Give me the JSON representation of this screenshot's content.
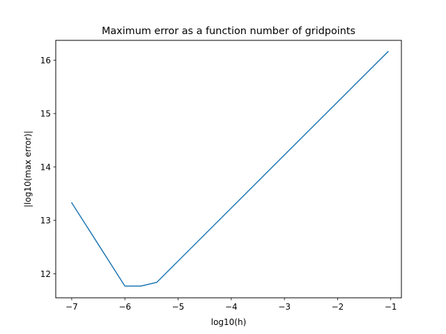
{
  "chart_data": {
    "type": "line",
    "title": "Maximum error as a function number of gridpoints",
    "xlabel": "log10(h)",
    "ylabel": "|log10(max error)|",
    "xlim": [
      -7.3,
      -0.8
    ],
    "ylim": [
      11.55,
      16.37
    ],
    "x_ticks": [
      -7,
      -6,
      -5,
      -4,
      -3,
      -2,
      -1
    ],
    "x_tick_labels": [
      "−7",
      "−6",
      "−5",
      "−4",
      "−3",
      "−2",
      "−1"
    ],
    "y_ticks": [
      12,
      13,
      14,
      15,
      16
    ],
    "y_tick_labels": [
      "12",
      "13",
      "14",
      "15",
      "16"
    ],
    "grid": false,
    "series": [
      {
        "color": "#1f77b4",
        "x": [
          -7.0,
          -6.0,
          -5.7,
          -5.4,
          -1.05
        ],
        "y": [
          13.33,
          11.77,
          11.77,
          11.84,
          16.16
        ]
      }
    ]
  }
}
